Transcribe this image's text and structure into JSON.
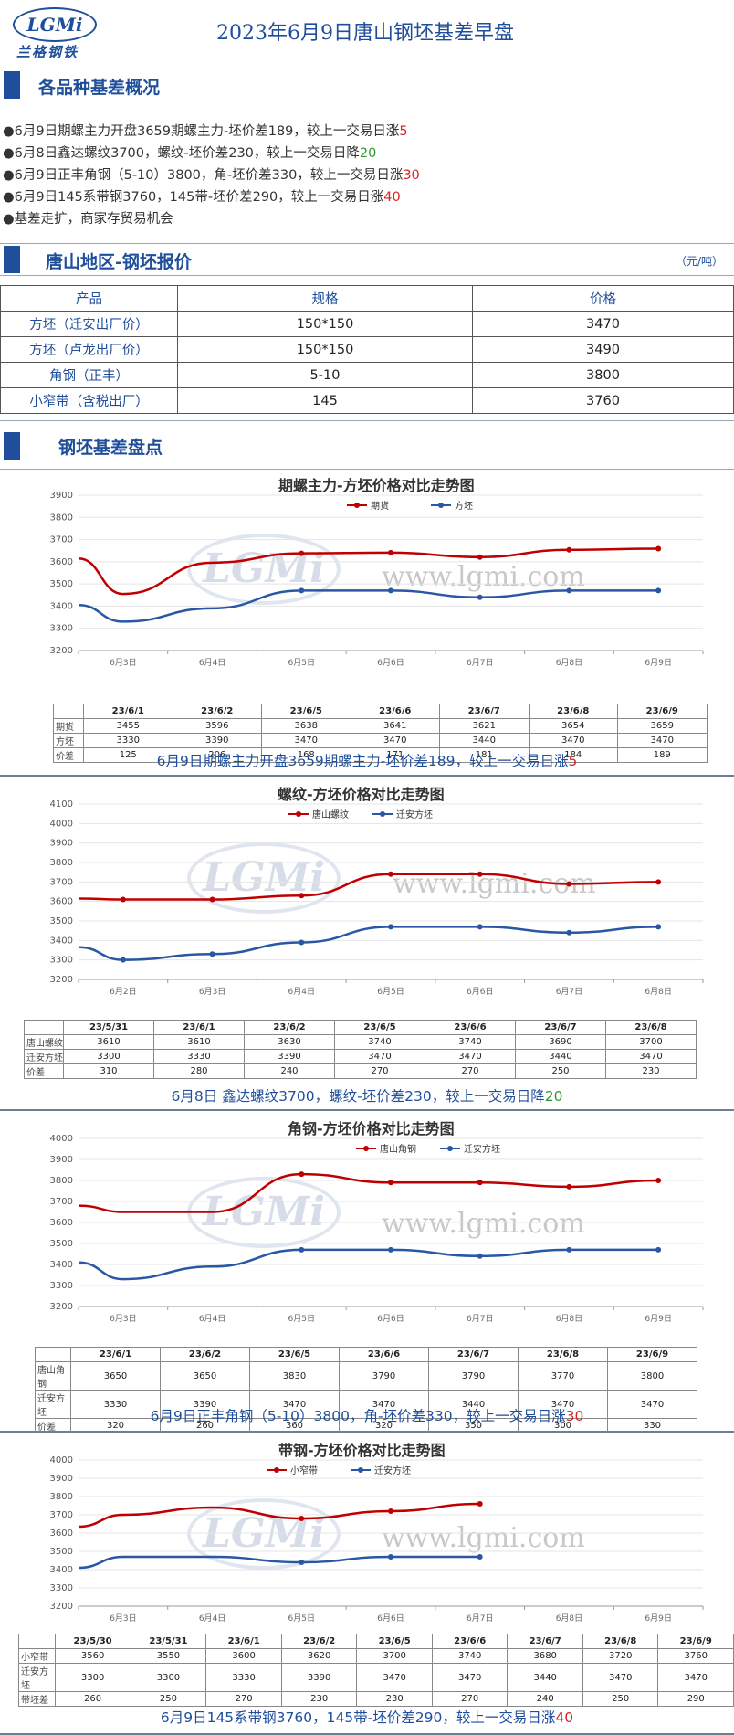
{
  "header": {
    "logo_text": "LGMi",
    "logo_cn": "兰格钢铁",
    "title": "2023年6月9日唐山钢坯基差早盘"
  },
  "section1": {
    "title": "各品种基差概况",
    "bullets": [
      {
        "text": "●6月9日期螺主力开盘3659期螺主力-坯价差189，较上一交易日涨",
        "num": "5",
        "color": "red"
      },
      {
        "text": "●6月8日鑫达螺纹3700，螺纹-坯价差230，较上一交易日降",
        "num": "20",
        "color": "green"
      },
      {
        "text": "●6月9日正丰角钢（5-10）3800，角-坯价差330，较上一交易日涨",
        "num": "30",
        "color": "red"
      },
      {
        "text": "●6月9日145系带钢3760，145带-坯价差290，较上一交易日涨",
        "num": "40",
        "color": "red"
      },
      {
        "text": "●基差走扩，商家存贸易机会",
        "num": "",
        "color": ""
      }
    ]
  },
  "section2": {
    "title": "唐山地区-钢坯报价",
    "unit": "（元/吨）",
    "headers": [
      "产品",
      "规格",
      "价格"
    ],
    "rows": [
      [
        "方坯（迁安出厂价）",
        "150*150",
        "3470"
      ],
      [
        "方坯（卢龙出厂价）",
        "150*150",
        "3490"
      ],
      [
        "角钢（正丰）",
        "5-10",
        "3800"
      ],
      [
        "小窄带（含税出厂）",
        "145",
        "3760"
      ]
    ]
  },
  "section3": {
    "title": "钢坯基差盘点"
  },
  "watermark": {
    "url": "www.lgmi.com",
    "logo": "LGMi"
  },
  "chart_data": [
    {
      "type": "line",
      "title": "期螺主力-方坯价格对比走势图",
      "ylim": [
        3200,
        3900
      ],
      "yticks": [
        3200,
        3300,
        3400,
        3500,
        3600,
        3700,
        3800,
        3900
      ],
      "x_axis_labels": [
        "6月3日",
        "6月4日",
        "6月5日",
        "6月6日",
        "6月7日",
        "6月8日",
        "6月9日"
      ],
      "categories": [
        "23/6/1",
        "23/6/2",
        "23/6/5",
        "23/6/6",
        "23/6/7",
        "23/6/8",
        "23/6/9"
      ],
      "series": [
        {
          "name": "期货",
          "values": [
            3455,
            3596,
            3638,
            3641,
            3621,
            3654,
            3659
          ],
          "color": "#c00000"
        },
        {
          "name": "方坯",
          "values": [
            3330,
            3390,
            3470,
            3470,
            3440,
            3470,
            3470
          ],
          "color": "#2957a4"
        }
      ],
      "line_start": [
        3615,
        3405
      ],
      "table_labels": [
        "期货",
        "方坯",
        "价差"
      ],
      "diff": [
        125,
        206,
        168,
        171,
        181,
        184,
        189
      ],
      "caption": "6月9日期螺主力开盘3659期螺主力-坯价差189，较上一交易日涨",
      "caption_num": "5",
      "caption_color": "red"
    },
    {
      "type": "line",
      "title": "螺纹-方坯价格对比走势图",
      "ylim": [
        3200,
        4100
      ],
      "yticks": [
        3200,
        3300,
        3400,
        3500,
        3600,
        3700,
        3800,
        3900,
        4000,
        4100
      ],
      "x_axis_labels": [
        "6月2日",
        "6月3日",
        "6月4日",
        "6月5日",
        "6月6日",
        "6月7日",
        "6月8日"
      ],
      "categories": [
        "23/5/31",
        "23/6/1",
        "23/6/2",
        "23/6/5",
        "23/6/6",
        "23/6/7",
        "23/6/8"
      ],
      "series": [
        {
          "name": "唐山螺纹",
          "values": [
            3610,
            3610,
            3630,
            3740,
            3740,
            3690,
            3700
          ],
          "color": "#c00000"
        },
        {
          "name": "迁安方坯",
          "values": [
            3300,
            3330,
            3390,
            3470,
            3470,
            3440,
            3470
          ],
          "color": "#2957a4"
        }
      ],
      "line_start": [
        3615,
        3365
      ],
      "table_labels": [
        "唐山螺纹",
        "迁安方坯",
        "价差"
      ],
      "diff": [
        310,
        280,
        240,
        270,
        270,
        250,
        230
      ],
      "caption": "6月8日 鑫达螺纹3700，螺纹-坯价差230，较上一交易日降",
      "caption_num": "20",
      "caption_color": "green"
    },
    {
      "type": "line",
      "title": "角钢-方坯价格对比走势图",
      "ylim": [
        3200,
        4000
      ],
      "yticks": [
        3200,
        3300,
        3400,
        3500,
        3600,
        3700,
        3800,
        3900,
        4000
      ],
      "x_axis_labels": [
        "6月3日",
        "6月4日",
        "6月5日",
        "6月6日",
        "6月7日",
        "6月8日",
        "6月9日"
      ],
      "categories": [
        "23/6/1",
        "23/6/2",
        "23/6/5",
        "23/6/6",
        "23/6/7",
        "23/6/8",
        "23/6/9"
      ],
      "series": [
        {
          "name": "唐山角钢",
          "values": [
            3650,
            3650,
            3830,
            3790,
            3790,
            3770,
            3800
          ],
          "color": "#c00000"
        },
        {
          "name": "迁安方坯",
          "values": [
            3330,
            3390,
            3470,
            3470,
            3440,
            3470,
            3470
          ],
          "color": "#2957a4"
        }
      ],
      "line_start": [
        3680,
        3410
      ],
      "table_labels": [
        "唐山角钢",
        "迁安方坯",
        "价差"
      ],
      "diff": [
        320,
        260,
        360,
        320,
        350,
        300,
        330
      ],
      "caption": "6月9日正丰角钢（5-10）3800，角-坯价差330，较上一交易日涨",
      "caption_num": "30",
      "caption_color": "red"
    },
    {
      "type": "line",
      "title": "带钢-方坯价格对比走势图",
      "ylim": [
        3200,
        4000
      ],
      "yticks": [
        3200,
        3300,
        3400,
        3500,
        3600,
        3700,
        3800,
        3900,
        4000
      ],
      "x_axis_labels": [
        "6月3日",
        "6月4日",
        "6月5日",
        "6月6日",
        "6月7日",
        "6月8日",
        "6月9日"
      ],
      "categories": [
        "23/5/30",
        "23/5/31",
        "23/6/1",
        "23/6/2",
        "23/6/5",
        "23/6/6",
        "23/6/7",
        "23/6/8",
        "23/6/9"
      ],
      "series": [
        {
          "name": "小窄带",
          "values": [
            3560,
            3550,
            3600,
            3620,
            3700,
            3740,
            3680,
            3720,
            3760
          ],
          "color": "#c00000"
        },
        {
          "name": "迁安方坯",
          "values": [
            3300,
            3300,
            3330,
            3390,
            3470,
            3470,
            3440,
            3470,
            3470
          ],
          "color": "#2957a4"
        }
      ],
      "plot_values": [
        [
          3700,
          3740,
          3680,
          3720,
          3760
        ],
        [
          3470,
          3470,
          3440,
          3470,
          3470
        ]
      ],
      "line_start": [
        3635,
        3410
      ],
      "table_labels": [
        "小窄带",
        "迁安方坯",
        "带坯差"
      ],
      "diff": [
        260,
        250,
        270,
        230,
        230,
        270,
        240,
        250,
        290
      ],
      "caption": "6月9日145系带钢3760，145带-坯价差290，较上一交易日涨",
      "caption_num": "40",
      "caption_color": "red"
    }
  ]
}
